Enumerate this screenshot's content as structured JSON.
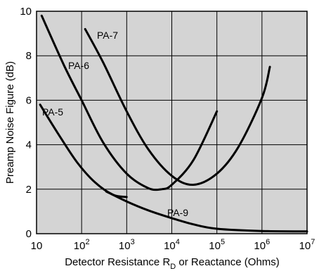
{
  "chart_data": {
    "type": "line",
    "xlabel": "Detector Resistance R",
    "xlabel_sub": "D",
    "xlabel_tail": " or Reactance (Ohms)",
    "ylabel": "Preamp Noise Figure (dB)",
    "x_scale": "log",
    "xlim": [
      10,
      10000000
    ],
    "ylim": [
      0,
      10
    ],
    "grid": true,
    "plot_background": "#d4d4d4",
    "x_ticks": [
      {
        "value": 10,
        "base": "10",
        "exp": ""
      },
      {
        "value": 100,
        "base": "10",
        "exp": "2"
      },
      {
        "value": 1000,
        "base": "10",
        "exp": "3"
      },
      {
        "value": 10000,
        "base": "10",
        "exp": "4"
      },
      {
        "value": 100000,
        "base": "10",
        "exp": "5"
      },
      {
        "value": 1000000,
        "base": "10",
        "exp": "6"
      },
      {
        "value": 10000000,
        "base": "10",
        "exp": "7"
      }
    ],
    "y_ticks": [
      "0",
      "2",
      "4",
      "6",
      "8",
      "10"
    ],
    "series": [
      {
        "name": "PA-5",
        "x": [
          12,
          30,
          80,
          200,
          500,
          1000
        ],
        "y": [
          5.8,
          4.5,
          3.2,
          2.3,
          1.75,
          1.65
        ]
      },
      {
        "name": "PA-6",
        "x": [
          13,
          40,
          100,
          300,
          1000,
          3000,
          6000,
          10000,
          30000,
          100000
        ],
        "y": [
          9.8,
          7.6,
          6.0,
          4.1,
          2.7,
          2.05,
          2.0,
          2.2,
          3.3,
          5.5
        ]
      },
      {
        "name": "PA-7",
        "x": [
          120,
          300,
          1000,
          3000,
          10000,
          30000,
          100000,
          300000,
          1000000,
          1500000
        ],
        "y": [
          9.2,
          7.7,
          5.5,
          3.8,
          2.6,
          2.2,
          2.7,
          3.9,
          6.1,
          7.5
        ]
      },
      {
        "name": "PA-9",
        "x": [
          350,
          1000,
          3000,
          10000,
          30000,
          100000,
          1000000,
          10000000
        ],
        "y": [
          1.9,
          1.45,
          1.05,
          0.7,
          0.42,
          0.22,
          0.12,
          0.1
        ]
      }
    ]
  }
}
